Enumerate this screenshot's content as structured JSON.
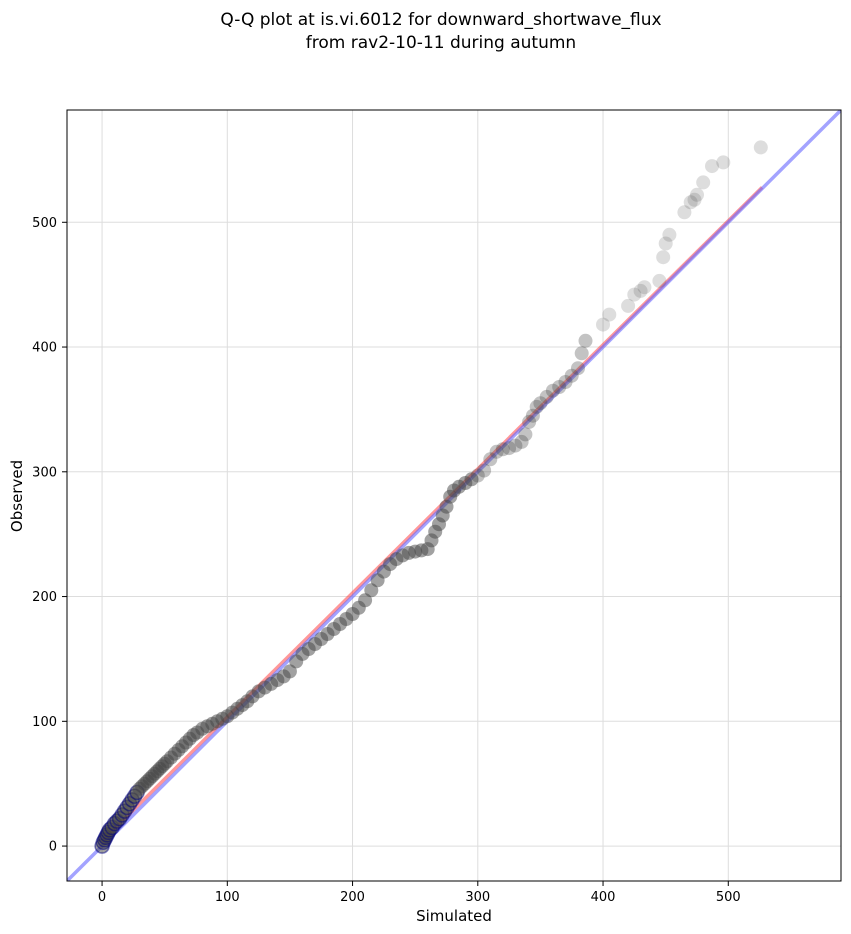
{
  "chart_data": {
    "type": "scatter",
    "title": "Q-Q plot at is.vi.6012 for downward_shortwave_flux",
    "subtitle": "from rav2-10-11 during autumn",
    "xlabel": "Simulated",
    "ylabel": "Observed",
    "xlim": [
      -28,
      590
    ],
    "ylim": [
      -28,
      590
    ],
    "xticks": [
      0,
      100,
      200,
      300,
      400,
      500
    ],
    "yticks": [
      0,
      100,
      200,
      300,
      400,
      500
    ],
    "grid": true,
    "colors": {
      "points": "#444444",
      "identity_line": "#6666ff",
      "fit_line": "#ff4444",
      "fit_line_overlap": "#9933cc",
      "low_point_edge": "#000080"
    },
    "reference_lines": [
      {
        "kind": "identity",
        "x": [
          -28,
          590
        ],
        "y": [
          -28,
          590
        ]
      },
      {
        "kind": "fit",
        "x": [
          0,
          527
        ],
        "y": [
          4,
          528
        ]
      }
    ],
    "points_x": [
      0,
      1,
      2,
      3,
      4,
      5,
      6,
      8,
      10,
      12,
      14,
      16,
      18,
      20,
      22,
      24,
      26,
      28,
      30,
      32,
      34,
      36,
      38,
      40,
      42,
      44,
      46,
      48,
      50,
      52,
      55,
      58,
      61,
      64,
      67,
      70,
      73,
      76,
      80,
      84,
      88,
      92,
      96,
      100,
      104,
      108,
      112,
      116,
      120,
      125,
      130,
      135,
      140,
      145,
      150,
      155,
      160,
      165,
      170,
      175,
      180,
      185,
      190,
      195,
      200,
      205,
      210,
      215,
      220,
      225,
      230,
      235,
      240,
      245,
      250,
      255,
      260,
      263,
      266,
      269,
      272,
      275,
      278,
      281,
      285,
      290,
      295,
      300,
      305,
      310,
      315,
      320,
      325,
      330,
      335,
      338,
      341,
      344,
      347,
      350,
      355,
      360,
      365,
      370,
      375,
      380,
      383,
      386,
      400,
      405,
      420,
      425,
      430,
      433,
      445,
      448,
      450,
      453,
      465,
      470,
      473,
      475,
      480,
      487,
      496,
      526
    ],
    "points_y": [
      0,
      3,
      5,
      7,
      9,
      11,
      13,
      15,
      18,
      20,
      22,
      25,
      28,
      31,
      34,
      37,
      40,
      43,
      46,
      48,
      50,
      52,
      54,
      56,
      58,
      60,
      62,
      64,
      66,
      68,
      71,
      74,
      77,
      80,
      83,
      86,
      89,
      91,
      94,
      96,
      98,
      100,
      102,
      104,
      107,
      110,
      113,
      116,
      120,
      124,
      127,
      130,
      133,
      136,
      140,
      148,
      154,
      158,
      162,
      166,
      170,
      174,
      178,
      182,
      186,
      191,
      197,
      205,
      213,
      220,
      226,
      230,
      233,
      235,
      236,
      237,
      238,
      245,
      252,
      258,
      265,
      272,
      280,
      285,
      288,
      291,
      294,
      297,
      301,
      310,
      316,
      318,
      319,
      321,
      324,
      330,
      340,
      345,
      352,
      355,
      360,
      365,
      368,
      372,
      377,
      383,
      395,
      405,
      418,
      426,
      433,
      442,
      445,
      448,
      453,
      472,
      483,
      490,
      508,
      516,
      518,
      522,
      532,
      545,
      548,
      560
    ]
  }
}
